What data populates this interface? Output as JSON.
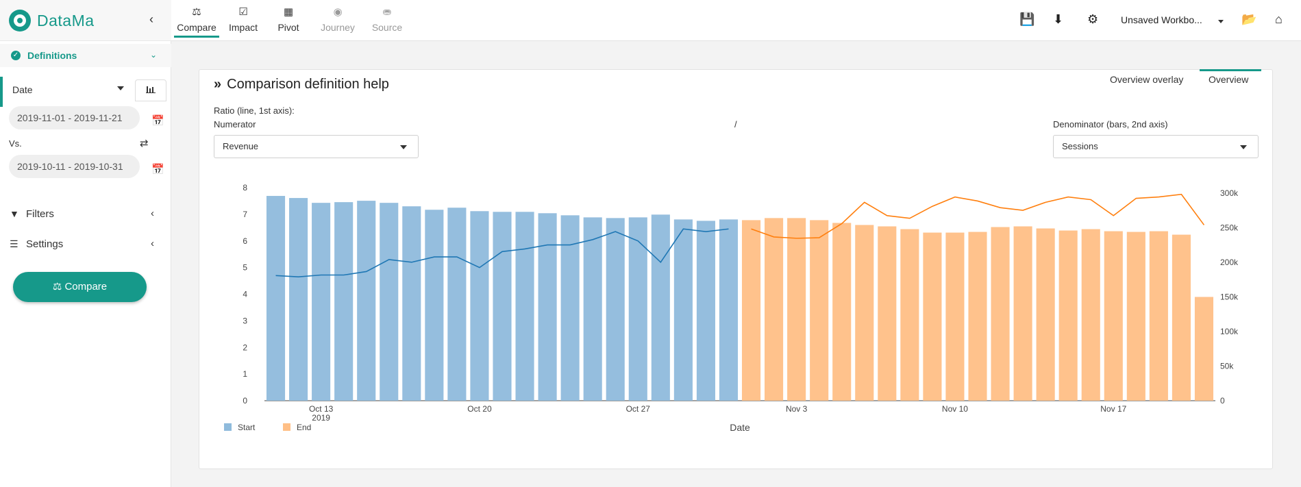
{
  "app": {
    "name": "DataMa"
  },
  "sidebar": {
    "definitions_label": "Definitions",
    "date_label": "Date",
    "date_range": "2019-11-01 - 2019-11-21",
    "vs_label": "Vs.",
    "vs_range": "2019-10-11 - 2019-10-31",
    "filters_label": "Filters",
    "settings_label": "Settings",
    "compare_button": "Compare"
  },
  "topbar": {
    "tabs": [
      {
        "label": "Compare",
        "icon": "balance-scale-icon",
        "active": true,
        "disabled": false
      },
      {
        "label": "Impact",
        "icon": "check-square-icon",
        "active": false,
        "disabled": false
      },
      {
        "label": "Pivot",
        "icon": "table-icon",
        "active": false,
        "disabled": false
      },
      {
        "label": "Journey",
        "icon": "globe-icon",
        "active": false,
        "disabled": true
      },
      {
        "label": "Source",
        "icon": "database-icon",
        "active": false,
        "disabled": true
      }
    ],
    "workbook_label": "Unsaved Workbo..."
  },
  "card": {
    "title": "Comparison definition help",
    "view_tabs": [
      {
        "label": "Overview overlay",
        "active": false
      },
      {
        "label": "Overview",
        "active": true
      }
    ],
    "ratio_label": "Ratio (line, 1st axis):",
    "numerator_label": "Numerator",
    "numerator_value": "Revenue",
    "slash": "/",
    "denominator_label": "Denominator (bars, 2nd axis)",
    "denominator_value": "Sessions"
  },
  "colors": {
    "accent": "#16998a",
    "start": "#8fbbdc",
    "end": "#ffbf86",
    "start_line": "#1f77b4",
    "end_line": "#ff7f0e"
  },
  "chart_data": {
    "type": "bar",
    "xlabel": "Date",
    "x_ticks": [
      "Oct 13",
      "Oct 20",
      "Oct 27",
      "Nov 3",
      "Nov 10",
      "Nov 17"
    ],
    "x_tick_sub": "2019",
    "y_left": {
      "range": [
        0,
        8
      ],
      "ticks": [
        "0",
        "1",
        "2",
        "3",
        "4",
        "5",
        "6",
        "7",
        "8"
      ]
    },
    "y_right": {
      "range": [
        0,
        300000
      ],
      "ticks": [
        "0",
        "50k",
        "100k",
        "150k",
        "200k",
        "250k",
        "300k"
      ]
    },
    "series": [
      {
        "name": "Start",
        "dates": [
          "2019-10-11",
          "2019-10-12",
          "2019-10-13",
          "2019-10-14",
          "2019-10-15",
          "2019-10-16",
          "2019-10-17",
          "2019-10-18",
          "2019-10-19",
          "2019-10-20",
          "2019-10-21",
          "2019-10-22",
          "2019-10-23",
          "2019-10-24",
          "2019-10-25",
          "2019-10-26",
          "2019-10-27",
          "2019-10-28",
          "2019-10-29",
          "2019-10-30",
          "2019-10-31"
        ],
        "sessions": [
          296000,
          293000,
          286000,
          287000,
          289000,
          286000,
          281000,
          276000,
          279000,
          274000,
          273000,
          273000,
          271000,
          268000,
          265000,
          264000,
          265000,
          269000,
          262000,
          260000,
          262000
        ],
        "ratio": [
          4.7,
          4.65,
          4.72,
          4.72,
          4.85,
          5.3,
          5.2,
          5.4,
          5.4,
          5.0,
          5.6,
          5.7,
          5.85,
          5.85,
          6.05,
          6.35,
          6.0,
          5.2,
          6.45,
          6.35,
          6.45
        ]
      },
      {
        "name": "End",
        "dates": [
          "2019-11-01",
          "2019-11-02",
          "2019-11-03",
          "2019-11-04",
          "2019-11-05",
          "2019-11-06",
          "2019-11-07",
          "2019-11-08",
          "2019-11-09",
          "2019-11-10",
          "2019-11-11",
          "2019-11-12",
          "2019-11-13",
          "2019-11-14",
          "2019-11-15",
          "2019-11-16",
          "2019-11-17",
          "2019-11-18",
          "2019-11-19",
          "2019-11-20",
          "2019-11-21"
        ],
        "sessions": [
          261000,
          264000,
          264000,
          261000,
          257000,
          254000,
          252000,
          248000,
          243000,
          243000,
          244000,
          251000,
          252000,
          249000,
          246000,
          248000,
          245000,
          244000,
          245000,
          240000,
          150000
        ],
        "ratio": [
          6.45,
          6.15,
          6.1,
          6.12,
          6.65,
          7.45,
          6.95,
          6.85,
          7.3,
          7.65,
          7.5,
          7.25,
          7.15,
          7.45,
          7.65,
          7.55,
          6.95,
          7.6,
          7.65,
          7.75,
          6.6
        ]
      }
    ],
    "legend": [
      "Start",
      "End"
    ]
  }
}
